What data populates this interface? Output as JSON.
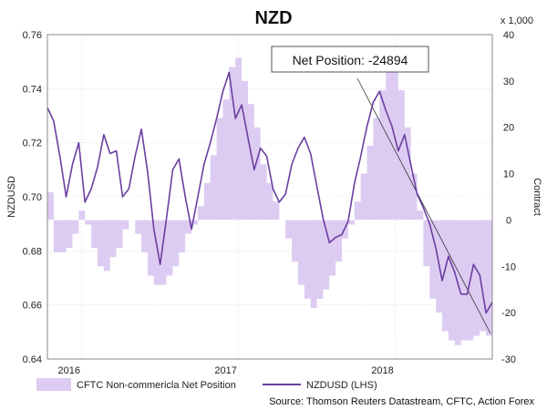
{
  "chart_data": {
    "type": "line+area",
    "title": "NZD",
    "ylabel_left": "NZDUSD",
    "ylabel_right": "Contract",
    "right_unit": "x 1,000",
    "ylim_left": [
      0.64,
      0.76
    ],
    "ylim_right": [
      -30,
      40
    ],
    "yticks_left": [
      "0.76",
      "0.74",
      "0.72",
      "0.70",
      "0.68",
      "0.66",
      "0.64"
    ],
    "yticks_right": [
      "40",
      "30",
      "20",
      "10",
      "0",
      "-10",
      "-20",
      "-30"
    ],
    "xlim": [
      2015.78,
      2018.62
    ],
    "xticks": [
      {
        "label": "2016",
        "x": 2016.0
      },
      {
        "label": "2017",
        "x": 2017.0
      },
      {
        "label": "2018",
        "x": 2018.0
      }
    ],
    "grid": true,
    "annotation": "Net Position: -24894",
    "source": "Source: Thomson Reuters Datastream, CFTC, Action Forex",
    "legend": {
      "placement": "bottom",
      "area_label": "CFTC Non-commericla Net Position",
      "line_label": "NZDUSD (LHS)"
    },
    "series": [
      {
        "name": "CFTC Non-commericla Net Position",
        "axis": "right",
        "kind": "area",
        "color": "#ddccf2",
        "x": [
          2015.78,
          2015.82,
          2015.86,
          2015.9,
          2015.94,
          2015.98,
          2016.02,
          2016.06,
          2016.1,
          2016.14,
          2016.18,
          2016.22,
          2016.26,
          2016.3,
          2016.34,
          2016.38,
          2016.42,
          2016.46,
          2016.5,
          2016.54,
          2016.58,
          2016.62,
          2016.66,
          2016.7,
          2016.74,
          2016.78,
          2016.82,
          2016.86,
          2016.9,
          2016.94,
          2016.98,
          2017.02,
          2017.06,
          2017.1,
          2017.14,
          2017.18,
          2017.22,
          2017.26,
          2017.3,
          2017.34,
          2017.38,
          2017.42,
          2017.46,
          2017.5,
          2017.54,
          2017.58,
          2017.62,
          2017.66,
          2017.7,
          2017.74,
          2017.78,
          2017.82,
          2017.86,
          2017.9,
          2017.94,
          2017.98,
          2018.02,
          2018.06,
          2018.1,
          2018.14,
          2018.18,
          2018.22,
          2018.26,
          2018.3,
          2018.34,
          2018.38,
          2018.42,
          2018.46,
          2018.5,
          2018.54,
          2018.58,
          2018.62
        ],
        "y": [
          6,
          -7,
          -7,
          -6,
          -3,
          2,
          -1,
          -6,
          -10,
          -11,
          -8,
          -6,
          -2,
          0,
          -3,
          -7,
          -12,
          -14,
          -14,
          -12,
          -10,
          -7,
          -3,
          -1,
          3,
          8,
          14,
          22,
          26,
          33,
          35,
          30,
          25,
          20,
          12,
          8,
          4,
          0,
          -4,
          -9,
          -14,
          -17,
          -19,
          -17,
          -15,
          -12,
          -9,
          -4,
          -1,
          4,
          10,
          16,
          22,
          28,
          32,
          34,
          28,
          20,
          10,
          2,
          -10,
          -17,
          -20,
          -24,
          -26,
          -27,
          -26,
          -26,
          -25,
          -24,
          -25,
          -24
        ]
      },
      {
        "name": "NZDUSD (LHS)",
        "axis": "left",
        "kind": "line",
        "color": "#6a3fa0",
        "x": [
          2015.78,
          2015.82,
          2015.86,
          2015.9,
          2015.94,
          2015.98,
          2016.02,
          2016.06,
          2016.1,
          2016.14,
          2016.18,
          2016.22,
          2016.26,
          2016.3,
          2016.34,
          2016.38,
          2016.42,
          2016.46,
          2016.5,
          2016.54,
          2016.58,
          2016.62,
          2016.66,
          2016.7,
          2016.74,
          2016.78,
          2016.82,
          2016.86,
          2016.9,
          2016.94,
          2016.98,
          2017.02,
          2017.06,
          2017.1,
          2017.14,
          2017.18,
          2017.22,
          2017.26,
          2017.3,
          2017.34,
          2017.38,
          2017.42,
          2017.46,
          2017.5,
          2017.54,
          2017.58,
          2017.62,
          2017.66,
          2017.7,
          2017.74,
          2017.78,
          2017.82,
          2017.86,
          2017.9,
          2017.94,
          2017.98,
          2018.02,
          2018.06,
          2018.1,
          2018.14,
          2018.18,
          2018.22,
          2018.26,
          2018.3,
          2018.34,
          2018.38,
          2018.42,
          2018.46,
          2018.5,
          2018.54,
          2018.58,
          2018.62
        ],
        "y": [
          0.733,
          0.728,
          0.715,
          0.7,
          0.712,
          0.72,
          0.698,
          0.703,
          0.711,
          0.723,
          0.716,
          0.717,
          0.7,
          0.703,
          0.715,
          0.725,
          0.709,
          0.688,
          0.675,
          0.692,
          0.71,
          0.714,
          0.7,
          0.688,
          0.7,
          0.712,
          0.72,
          0.729,
          0.739,
          0.746,
          0.729,
          0.734,
          0.722,
          0.71,
          0.718,
          0.715,
          0.703,
          0.698,
          0.701,
          0.712,
          0.718,
          0.722,
          0.716,
          0.704,
          0.692,
          0.683,
          0.685,
          0.686,
          0.691,
          0.705,
          0.715,
          0.726,
          0.735,
          0.739,
          0.732,
          0.726,
          0.717,
          0.723,
          0.712,
          0.701,
          0.696,
          0.69,
          0.681,
          0.669,
          0.678,
          0.672,
          0.664,
          0.664,
          0.675,
          0.671,
          0.657,
          0.661
        ]
      }
    ]
  }
}
